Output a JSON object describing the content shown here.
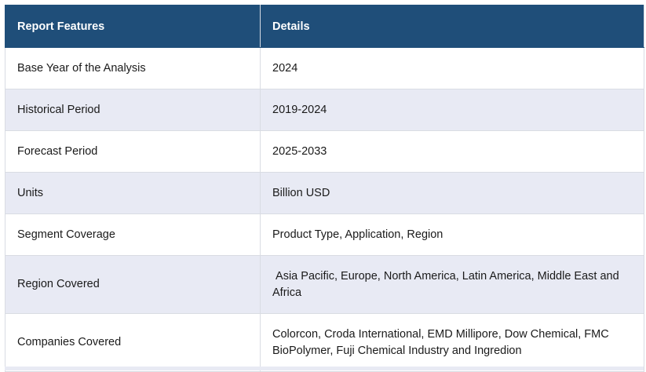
{
  "table": {
    "headers": [
      "Report Features",
      "Details"
    ],
    "rows": [
      {
        "feature": "Base Year of the Analysis",
        "detail": "2024"
      },
      {
        "feature": "Historical Period",
        "detail": "2019-2024"
      },
      {
        "feature": "Forecast Period",
        "detail": "2025-2033"
      },
      {
        "feature": "Units",
        "detail": "Billion USD"
      },
      {
        "feature": "Segment Coverage",
        "detail": "Product Type, Application, Region"
      },
      {
        "feature": "Region Covered",
        "detail": " Asia Pacific, Europe, North America, Latin America, Middle East and Africa"
      },
      {
        "feature": "Companies Covered",
        "detail": "Colorcon, Croda International, EMD Millipore, Dow Chemical, FMC BioPolymer, Fuji Chemical Industry and Ingredion"
      }
    ]
  },
  "colors": {
    "header_bg": "#1f4e79",
    "header_text": "#ffffff",
    "row_shade": "#e8eaf4",
    "row_white": "#ffffff"
  }
}
